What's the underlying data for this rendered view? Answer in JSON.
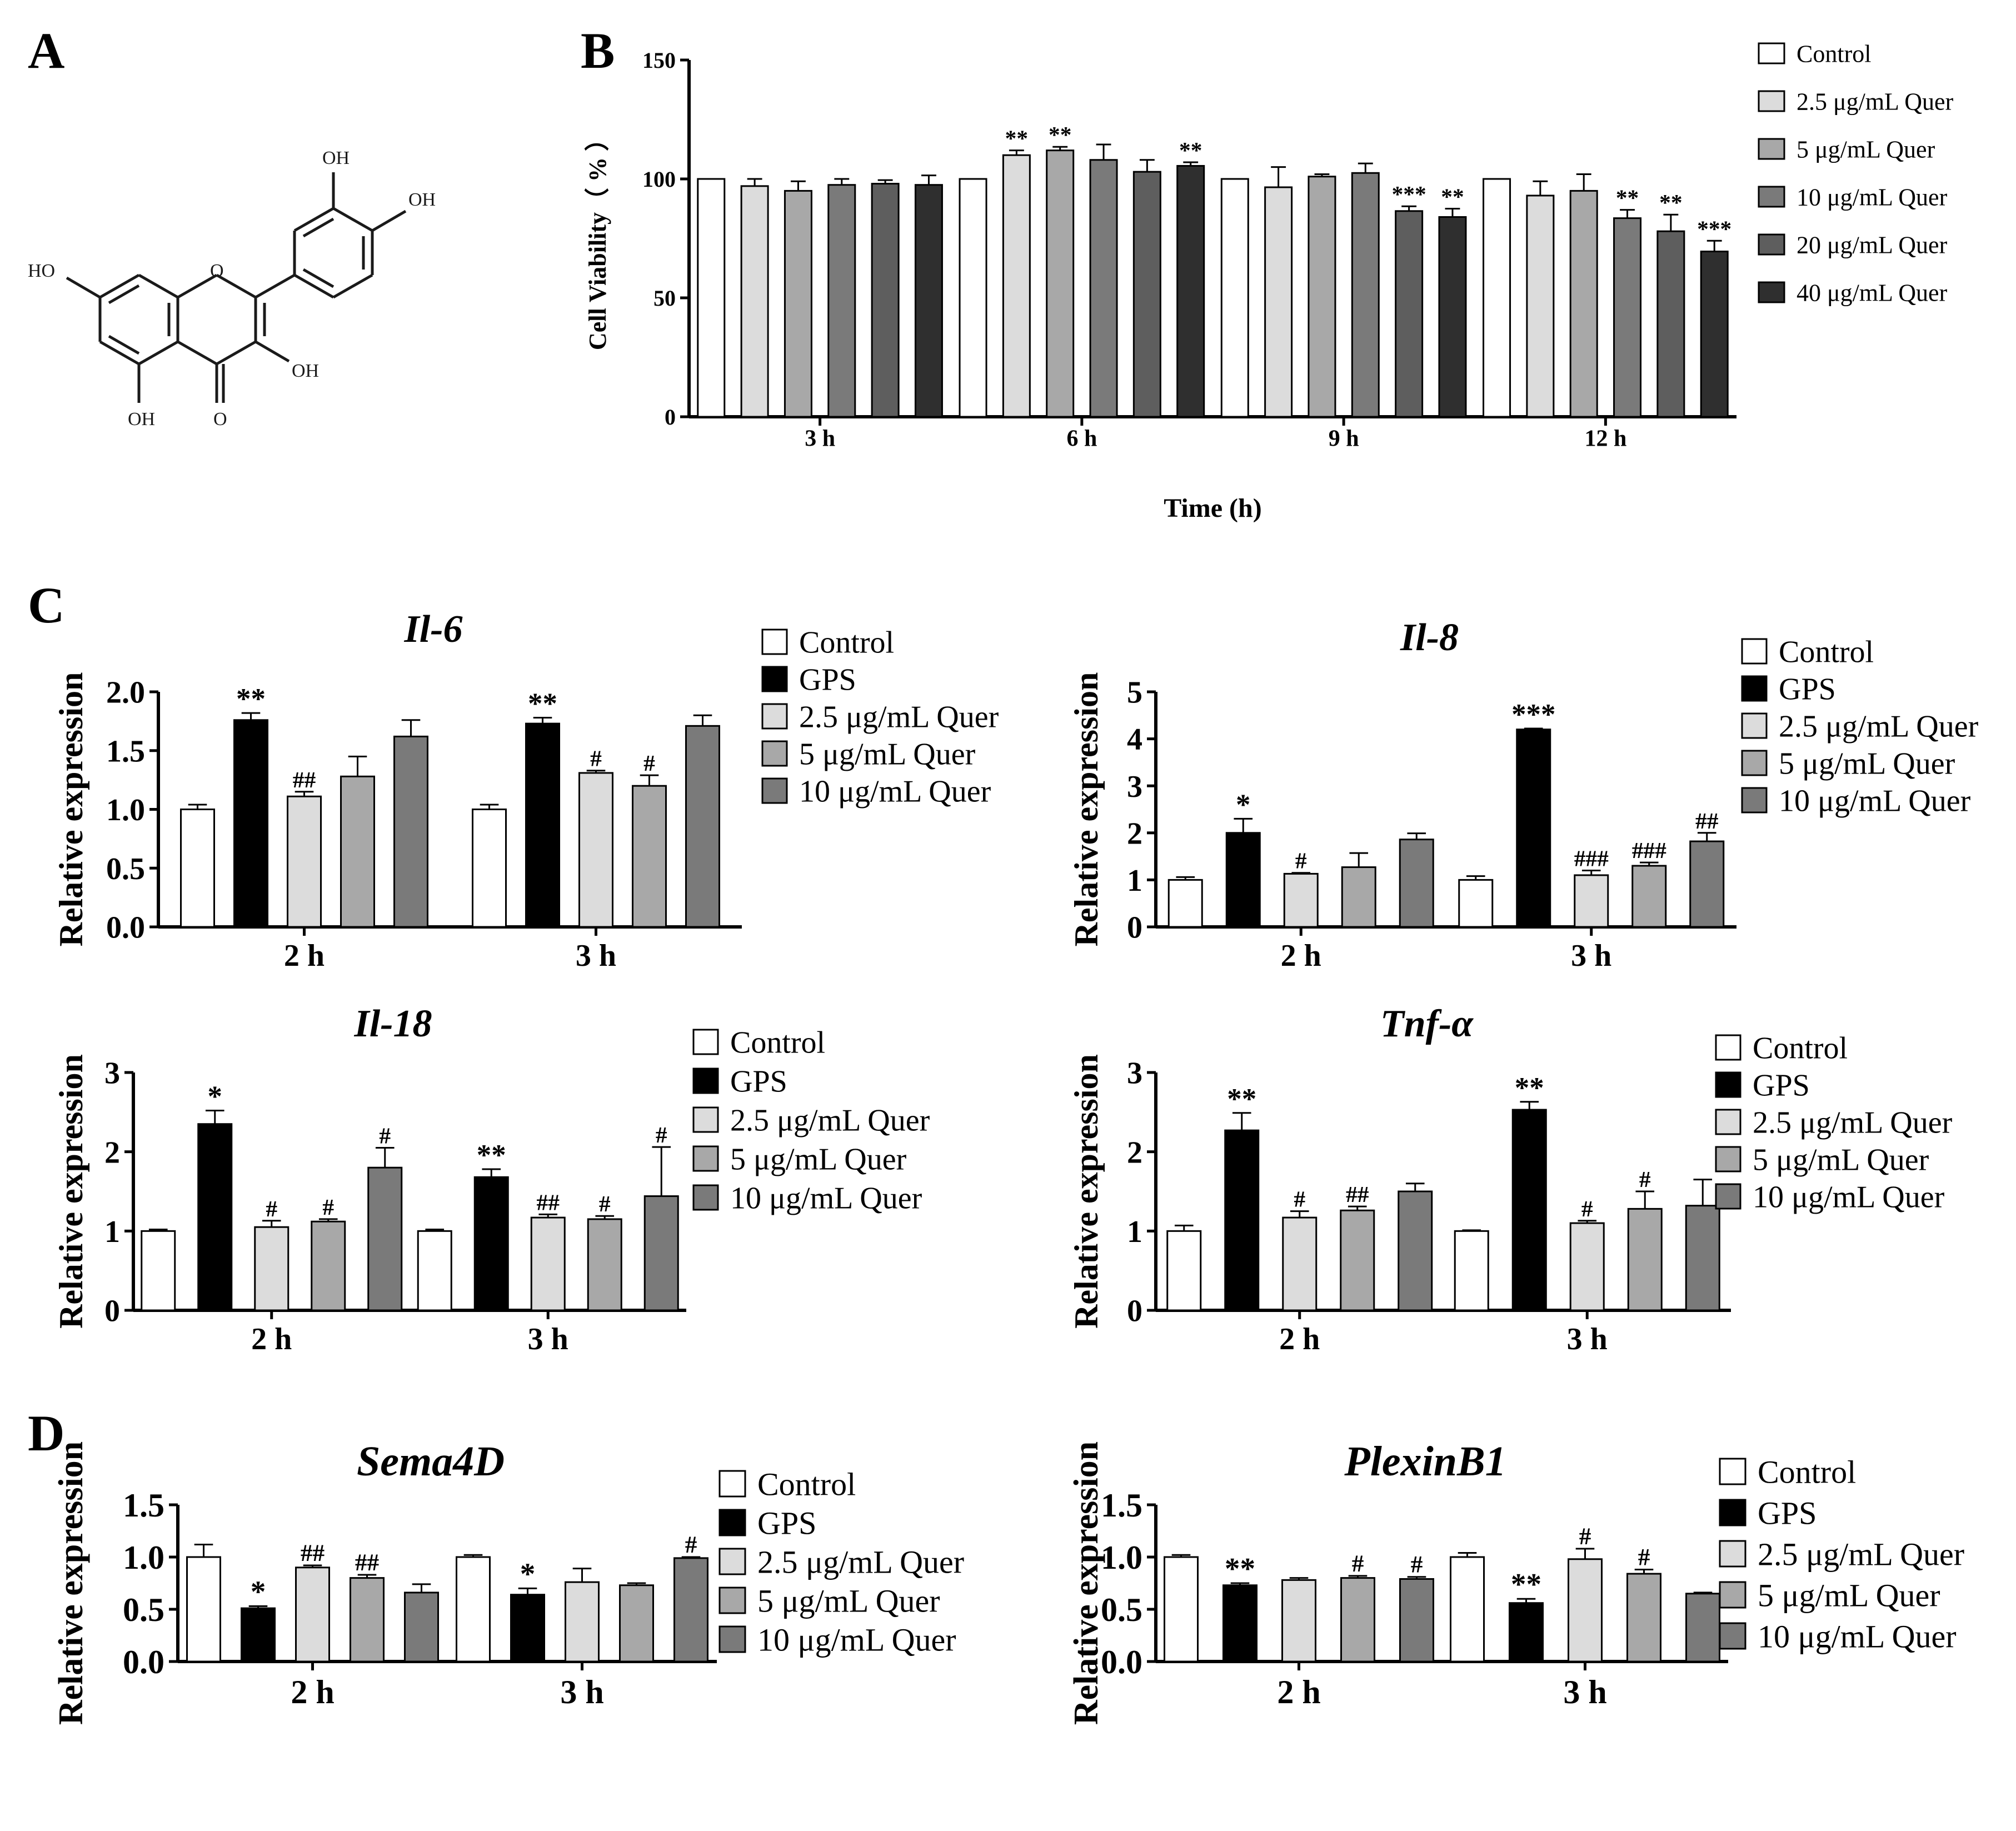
{
  "panel_letters": [
    "A",
    "B",
    "C",
    "D"
  ],
  "molecule": {
    "name": "Quercetin",
    "labels": [
      "OH",
      "OH",
      "HO",
      "O",
      "OH",
      "OH",
      "O"
    ],
    "colors": {
      "line": "#1a1a1a"
    }
  },
  "colors": {
    "control": "#ffffff",
    "gps": "#000000",
    "q2_5": "#dcdcdc",
    "q5": "#a8a8a8",
    "q10": "#7a7a7a",
    "q20": "#5e5e5e",
    "q40": "#2f2f2f",
    "axis": "#000000"
  },
  "chart_data": [
    {
      "id": "B",
      "type": "bar",
      "title": "",
      "xlabel": "Time (h)",
      "ylabel": "Cell Viability（ % ）",
      "ylim": [
        0,
        150
      ],
      "yticks": [
        "0",
        "50",
        "100",
        "150"
      ],
      "categories": [
        "3 h",
        "6 h",
        "9 h",
        "12 h"
      ],
      "series": [
        {
          "name": "Control",
          "color": "#ffffff",
          "values": [
            100,
            100,
            100,
            100
          ],
          "errors": [
            0,
            0,
            0,
            0
          ],
          "marks": [
            "",
            "",
            "",
            ""
          ]
        },
        {
          "name": "2.5 μg/mL Quer",
          "color": "#dcdcdc",
          "values": [
            97,
            110,
            96.5,
            93
          ],
          "errors": [
            3,
            2,
            8.5,
            6
          ],
          "marks": [
            "",
            "**",
            "",
            ""
          ]
        },
        {
          "name": "5 μg/mL Quer",
          "color": "#a8a8a8",
          "values": [
            95,
            112,
            101,
            95
          ],
          "errors": [
            4,
            1.5,
            1,
            7
          ],
          "marks": [
            "",
            "**",
            "",
            ""
          ]
        },
        {
          "name": "10 μg/mL Quer",
          "color": "#7a7a7a",
          "values": [
            97.5,
            108,
            102.5,
            83.5
          ],
          "errors": [
            2.5,
            6.5,
            4,
            3.5
          ],
          "marks": [
            "",
            "",
            "",
            "**"
          ]
        },
        {
          "name": "20 μg/mL Quer",
          "color": "#5e5e5e",
          "values": [
            98,
            103,
            86.5,
            78
          ],
          "errors": [
            1.5,
            5,
            2,
            7
          ],
          "marks": [
            "",
            "",
            "***",
            "**"
          ]
        },
        {
          "name": "40 μg/mL Quer",
          "color": "#2f2f2f",
          "values": [
            97.5,
            105.5,
            84,
            69.5
          ],
          "errors": [
            4,
            1.5,
            3.5,
            4.5
          ],
          "marks": [
            "",
            "**",
            "**",
            "***"
          ]
        }
      ],
      "legend": "top-right"
    },
    {
      "id": "C1",
      "type": "bar",
      "title": "Il-6",
      "xlabel": "",
      "ylabel": "Relative expression",
      "ylim": [
        0,
        2
      ],
      "yticks": [
        "0.0",
        "0.5",
        "1.0",
        "1.5",
        "2.0"
      ],
      "categories": [
        "2 h",
        "3 h"
      ],
      "series": [
        {
          "name": "Control",
          "color": "#ffffff",
          "values": [
            1.0,
            1.0
          ],
          "errors": [
            0.04,
            0.04
          ],
          "marks": [
            "",
            ""
          ]
        },
        {
          "name": "GPS",
          "color": "#000000",
          "values": [
            1.76,
            1.73
          ],
          "errors": [
            0.06,
            0.05
          ],
          "marks": [
            "**",
            "**"
          ]
        },
        {
          "name": "2.5 μg/mL Quer",
          "color": "#dcdcdc",
          "values": [
            1.11,
            1.31
          ],
          "errors": [
            0.04,
            0.02
          ],
          "marks": [
            "##",
            "#"
          ]
        },
        {
          "name": "5  μg/mL Quer",
          "color": "#a8a8a8",
          "values": [
            1.28,
            1.2
          ],
          "errors": [
            0.17,
            0.09
          ],
          "marks": [
            "",
            "#"
          ]
        },
        {
          "name": "10 μg/mL Quer",
          "color": "#7a7a7a",
          "values": [
            1.62,
            1.71
          ],
          "errors": [
            0.14,
            0.09
          ],
          "marks": [
            "",
            ""
          ]
        }
      ],
      "legend": "right"
    },
    {
      "id": "C2",
      "type": "bar",
      "title": "Il-8",
      "xlabel": "",
      "ylabel": "Relative expression",
      "ylim": [
        0,
        5
      ],
      "yticks": [
        "0",
        "1",
        "2",
        "3",
        "4",
        "5"
      ],
      "categories": [
        "2 h",
        "3 h"
      ],
      "series": [
        {
          "name": "Control",
          "color": "#ffffff",
          "values": [
            1.0,
            1.0
          ],
          "errors": [
            0.06,
            0.08
          ],
          "marks": [
            "",
            ""
          ]
        },
        {
          "name": "GPS",
          "color": "#000000",
          "values": [
            2.0,
            4.2
          ],
          "errors": [
            0.3,
            0.02
          ],
          "marks": [
            "*",
            "***"
          ]
        },
        {
          "name": "2.5 μg/mL Quer",
          "color": "#dcdcdc",
          "values": [
            1.13,
            1.1
          ],
          "errors": [
            0.02,
            0.1
          ],
          "marks": [
            "#",
            "###"
          ]
        },
        {
          "name": "5 μg/mL Quer",
          "color": "#a8a8a8",
          "values": [
            1.27,
            1.3
          ],
          "errors": [
            0.3,
            0.07
          ],
          "marks": [
            "",
            "###"
          ]
        },
        {
          "name": "10 μg/mL Quer",
          "color": "#7a7a7a",
          "values": [
            1.86,
            1.82
          ],
          "errors": [
            0.13,
            0.18
          ],
          "marks": [
            "",
            "##"
          ]
        }
      ],
      "legend": "right"
    },
    {
      "id": "C3",
      "type": "bar",
      "title": "Il-18",
      "xlabel": "",
      "ylabel": "Relative expression",
      "ylim": [
        0,
        3
      ],
      "yticks": [
        "0",
        "1",
        "2",
        "3"
      ],
      "categories": [
        "2 h",
        "3 h"
      ],
      "series": [
        {
          "name": "Control",
          "color": "#ffffff",
          "values": [
            1.0,
            1.0
          ],
          "errors": [
            0.02,
            0.02
          ],
          "marks": [
            "",
            ""
          ]
        },
        {
          "name": "GPS",
          "color": "#000000",
          "values": [
            2.35,
            1.68
          ],
          "errors": [
            0.17,
            0.1
          ],
          "marks": [
            "*",
            "**"
          ]
        },
        {
          "name": "2.5 μg/mL Quer",
          "color": "#dcdcdc",
          "values": [
            1.05,
            1.17
          ],
          "errors": [
            0.08,
            0.04
          ],
          "marks": [
            "#",
            "##"
          ]
        },
        {
          "name": "5 μg/mL Quer",
          "color": "#a8a8a8",
          "values": [
            1.12,
            1.15
          ],
          "errors": [
            0.03,
            0.04
          ],
          "marks": [
            "#",
            "#"
          ]
        },
        {
          "name": "10 μg/mL Quer",
          "color": "#7a7a7a",
          "values": [
            1.8,
            1.44
          ],
          "errors": [
            0.25,
            0.62
          ],
          "marks": [
            "#",
            "#"
          ]
        }
      ],
      "legend": "right"
    },
    {
      "id": "C4",
      "type": "bar",
      "title": "Tnf-α",
      "xlabel": "",
      "ylabel": "Relative expression",
      "ylim": [
        0,
        3
      ],
      "yticks": [
        "0",
        "1",
        "2",
        "3"
      ],
      "categories": [
        "2 h",
        "3 h"
      ],
      "series": [
        {
          "name": "Control",
          "color": "#ffffff",
          "values": [
            1.0,
            1.0
          ],
          "errors": [
            0.07,
            0.01
          ],
          "marks": [
            "",
            ""
          ]
        },
        {
          "name": "GPS",
          "color": "#000000",
          "values": [
            2.27,
            2.53
          ],
          "errors": [
            0.22,
            0.1
          ],
          "marks": [
            "**",
            "**"
          ]
        },
        {
          "name": "2.5 μg/mL Quer",
          "color": "#dcdcdc",
          "values": [
            1.17,
            1.1
          ],
          "errors": [
            0.08,
            0.03
          ],
          "marks": [
            "#",
            "#"
          ]
        },
        {
          "name": "5 μg/mL Quer",
          "color": "#a8a8a8",
          "values": [
            1.26,
            1.28
          ],
          "errors": [
            0.05,
            0.22
          ],
          "marks": [
            "##",
            "#"
          ]
        },
        {
          "name": "10 μg/mL Quer",
          "color": "#7a7a7a",
          "values": [
            1.5,
            1.32
          ],
          "errors": [
            0.1,
            0.33
          ],
          "marks": [
            "",
            ""
          ]
        }
      ],
      "legend": "right"
    },
    {
      "id": "D1",
      "type": "bar",
      "title": "Sema4D",
      "xlabel": "",
      "ylabel": "Relative expression",
      "ylim": [
        0,
        1.5
      ],
      "yticks": [
        "0.0",
        "0.5",
        "1.0",
        "1.5"
      ],
      "categories": [
        "2 h",
        "3 h"
      ],
      "series": [
        {
          "name": "Control",
          "color": "#ffffff",
          "values": [
            1.0,
            1.0
          ],
          "errors": [
            0.12,
            0.02
          ],
          "marks": [
            "",
            ""
          ]
        },
        {
          "name": "GPS",
          "color": "#000000",
          "values": [
            0.51,
            0.64
          ],
          "errors": [
            0.02,
            0.06
          ],
          "marks": [
            "*",
            "*"
          ]
        },
        {
          "name": "2.5 μg/mL Quer",
          "color": "#dcdcdc",
          "values": [
            0.9,
            0.76
          ],
          "errors": [
            0.02,
            0.13
          ],
          "marks": [
            "##",
            ""
          ]
        },
        {
          "name": "5 μg/mL Quer",
          "color": "#a8a8a8",
          "values": [
            0.8,
            0.73
          ],
          "errors": [
            0.03,
            0.02
          ],
          "marks": [
            "##",
            ""
          ]
        },
        {
          "name": "10 μg/mL Quer",
          "color": "#7a7a7a",
          "values": [
            0.66,
            0.99
          ],
          "errors": [
            0.08,
            0.01
          ],
          "marks": [
            "",
            "#"
          ]
        }
      ],
      "legend": "right"
    },
    {
      "id": "D2",
      "type": "bar",
      "title": "PlexinB1",
      "xlabel": "",
      "ylabel": "Relative expression",
      "ylim": [
        0,
        1.5
      ],
      "yticks": [
        "0.0",
        "0.5",
        "1.0",
        "1.5"
      ],
      "categories": [
        "2 h",
        "3 h"
      ],
      "series": [
        {
          "name": "Control",
          "color": "#ffffff",
          "values": [
            1.0,
            1.0
          ],
          "errors": [
            0.02,
            0.04
          ],
          "marks": [
            "",
            ""
          ]
        },
        {
          "name": "GPS",
          "color": "#000000",
          "values": [
            0.73,
            0.56
          ],
          "errors": [
            0.02,
            0.04
          ],
          "marks": [
            "**",
            "**"
          ]
        },
        {
          "name": "2.5 μg/mL Quer",
          "color": "#dcdcdc",
          "values": [
            0.78,
            0.98
          ],
          "errors": [
            0.02,
            0.1
          ],
          "marks": [
            "",
            "#"
          ]
        },
        {
          "name": "5 μg/mL Quer",
          "color": "#a8a8a8",
          "values": [
            0.8,
            0.84
          ],
          "errors": [
            0.02,
            0.04
          ],
          "marks": [
            "#",
            "#"
          ]
        },
        {
          "name": "10 μg/mL Quer",
          "color": "#7a7a7a",
          "values": [
            0.79,
            0.65
          ],
          "errors": [
            0.02,
            0.01
          ],
          "marks": [
            "#",
            ""
          ]
        }
      ],
      "legend": "right"
    }
  ]
}
